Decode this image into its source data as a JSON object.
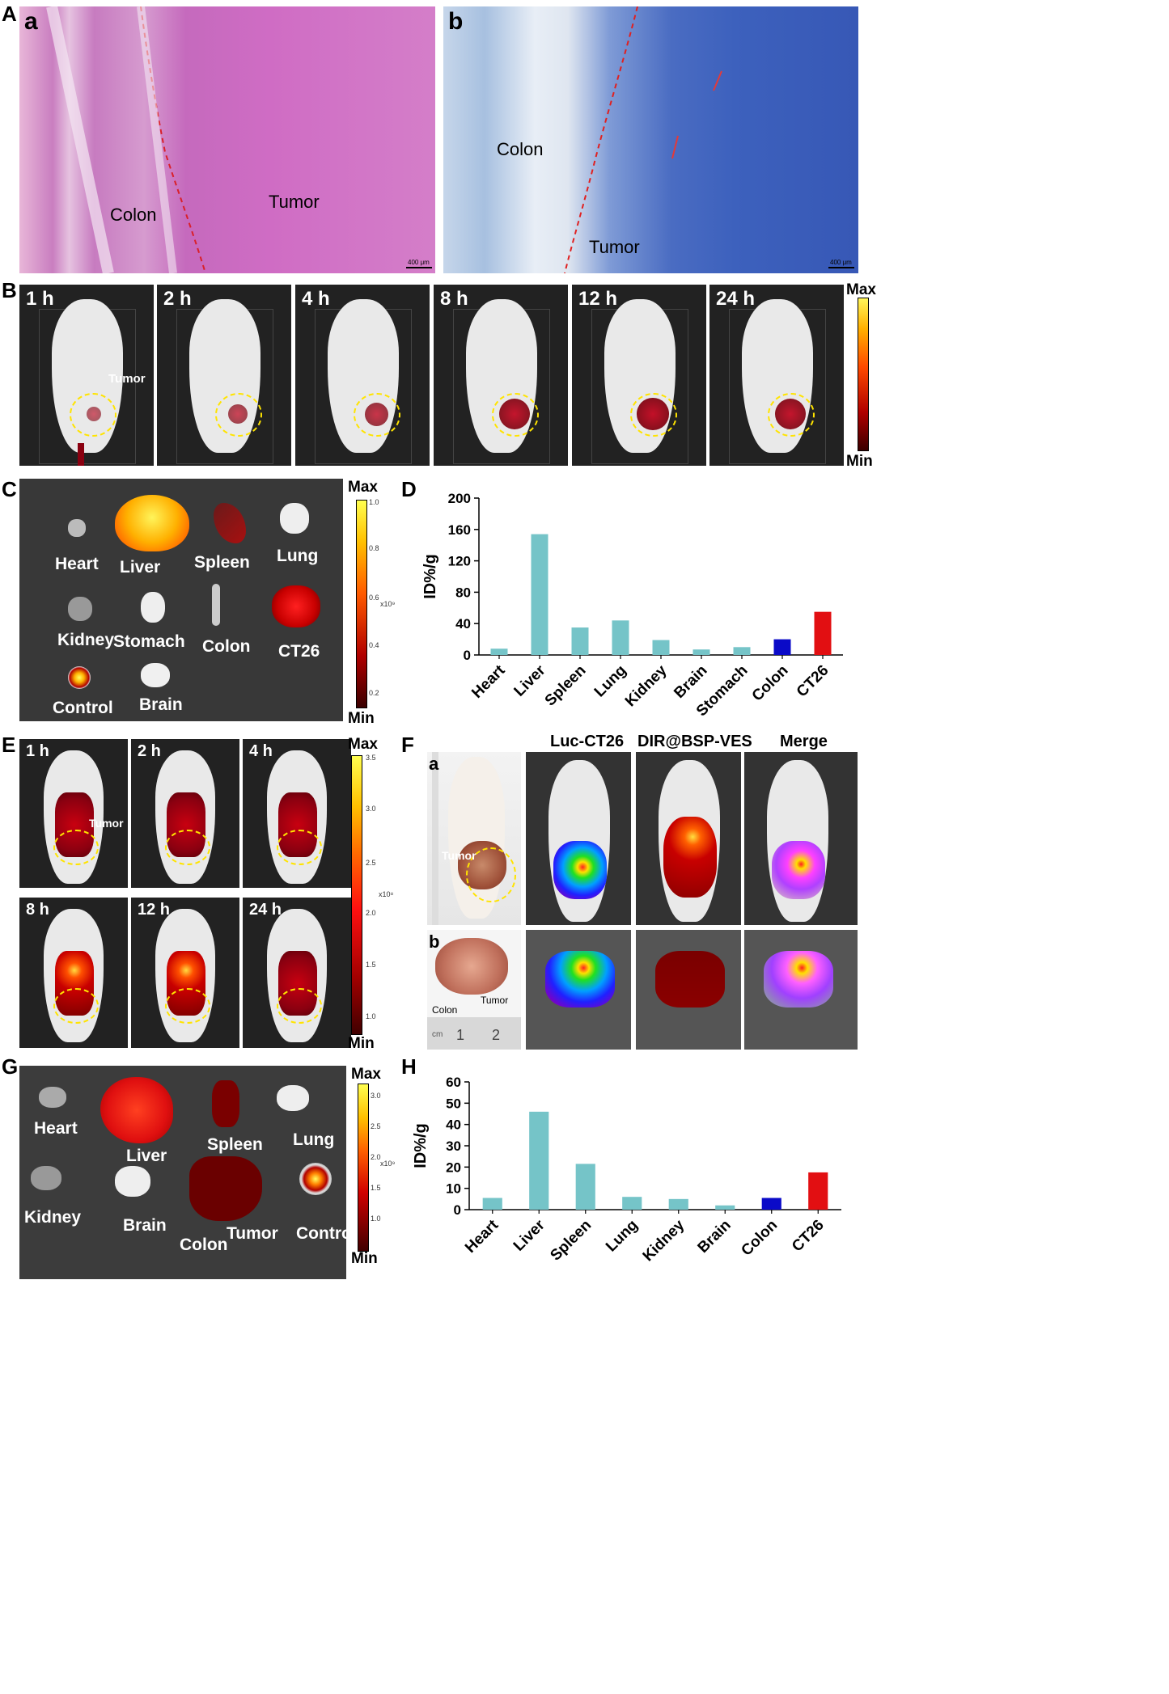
{
  "panels": {
    "A": {
      "letter": "A",
      "a": {
        "sub": "a",
        "colon": "Colon",
        "tumor": "Tumor",
        "scale": "400 μm"
      },
      "b": {
        "sub": "b",
        "colon": "Colon",
        "tumor": "Tumor",
        "scale": "400 μm"
      }
    },
    "B": {
      "letter": "B",
      "times": [
        "1 h",
        "2 h",
        "4 h",
        "8 h",
        "12 h",
        "24 h"
      ],
      "tumor_label": "Tumor",
      "max": "Max",
      "min": "Min"
    },
    "C": {
      "letter": "C",
      "organs": [
        "Heart",
        "Liver",
        "Spleen",
        "Lung",
        "Kidney",
        "Stomach",
        "Colon",
        "CT26",
        "Control",
        "Brain"
      ],
      "max": "Max",
      "min": "Min",
      "ticks": [
        "1.0",
        "0.8",
        "0.6",
        "0.4",
        "0.2"
      ],
      "unit": "x10⁹"
    },
    "D": {
      "letter": "D"
    },
    "E": {
      "letter": "E",
      "times": [
        "1 h",
        "2 h",
        "4 h",
        "8 h",
        "12 h",
        "24 h"
      ],
      "tumor_label": "Tumor",
      "max": "Max",
      "min": "Min",
      "ticks": [
        "3.5",
        "3.0",
        "2.5",
        "2.0",
        "1.5",
        "1.0"
      ],
      "unit": "x10⁸"
    },
    "F": {
      "letter": "F",
      "headers": [
        "Luc-CT26",
        "DIR@BSP-VES",
        "Merge"
      ],
      "sub_a": "a",
      "sub_b": "b",
      "tumor": "Tumor",
      "colon": "Colon",
      "ruler_1": "1",
      "ruler_2": "2",
      "ruler_cm": "cm"
    },
    "G": {
      "letter": "G",
      "organs": [
        "Heart",
        "Liver",
        "Spleen",
        "Lung",
        "Kidney",
        "Brain",
        "Colon",
        "Tumor",
        "Control"
      ],
      "max": "Max",
      "min": "Min",
      "ticks": [
        "3.0",
        "2.5",
        "2.0",
        "1.5",
        "1.0"
      ],
      "unit": "x10⁹"
    },
    "H": {
      "letter": "H"
    }
  },
  "chart_data": [
    {
      "id": "D",
      "type": "bar",
      "categories": [
        "Heart",
        "Liver",
        "Spleen",
        "Lung",
        "Kidney",
        "Brain",
        "Stomach",
        "Colon",
        "CT26"
      ],
      "values": [
        8,
        154,
        35,
        44,
        19,
        7,
        10,
        20,
        55
      ],
      "colors": [
        "#75c4c8",
        "#75c4c8",
        "#75c4c8",
        "#75c4c8",
        "#75c4c8",
        "#75c4c8",
        "#75c4c8",
        "#0a0ac8",
        "#e20f12"
      ],
      "ylabel": "ID%/g",
      "ylim": [
        0,
        200
      ],
      "yticks": [
        0,
        40,
        80,
        120,
        160,
        200
      ]
    },
    {
      "id": "H",
      "type": "bar",
      "categories": [
        "Heart",
        "Liver",
        "Spleen",
        "Lung",
        "Kidney",
        "Brain",
        "Colon",
        "CT26"
      ],
      "values": [
        5.5,
        46,
        21.5,
        6,
        5,
        2,
        5.5,
        17.5
      ],
      "colors": [
        "#75c4c8",
        "#75c4c8",
        "#75c4c8",
        "#75c4c8",
        "#75c4c8",
        "#75c4c8",
        "#0a0ac8",
        "#e20f12"
      ],
      "ylabel": "ID%/g",
      "ylim": [
        0,
        60
      ],
      "yticks": [
        0,
        10,
        20,
        30,
        40,
        50,
        60
      ]
    }
  ]
}
